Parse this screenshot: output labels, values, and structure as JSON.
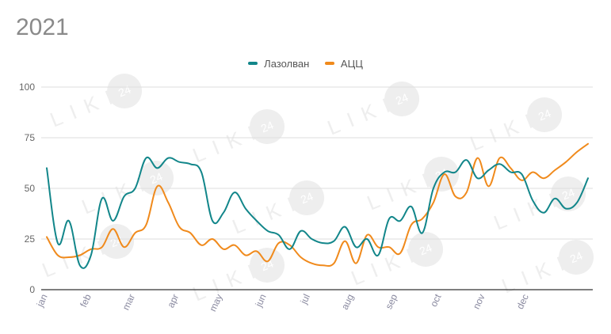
{
  "header": {
    "title": "2021"
  },
  "colors": {
    "series_0": "#12868a",
    "series_1": "#f08a1c",
    "grid": "#dddddd",
    "axis": "#333333"
  },
  "watermark": {
    "text": "LIKI",
    "badge": "24"
  },
  "chart_data": {
    "type": "line",
    "title": "",
    "xlabel": "",
    "ylabel": "",
    "ylim": [
      0,
      100
    ],
    "yticks": [
      0,
      25,
      50,
      75,
      100
    ],
    "grid": true,
    "legend_position": "top",
    "x_labels": [
      "jan",
      "feb",
      "mar",
      "apr",
      "may",
      "jun",
      "jul",
      "aug",
      "sep",
      "oct",
      "nov",
      "dec"
    ],
    "series": [
      {
        "name": "Лазолван",
        "values": [
          60,
          23,
          34,
          12,
          17,
          45,
          34,
          46,
          50,
          65,
          60,
          65,
          63,
          62,
          58,
          34,
          38,
          48,
          40,
          34,
          29,
          27,
          20,
          29,
          25,
          23,
          24,
          31,
          21,
          25,
          17,
          35,
          34,
          41,
          28,
          50,
          58,
          58,
          64,
          55,
          59,
          62,
          58,
          57,
          44,
          38,
          45,
          40,
          43,
          55
        ]
      },
      {
        "name": "АЦЦ",
        "values": [
          26,
          17,
          16,
          17,
          20,
          21,
          30,
          21,
          28,
          32,
          51,
          43,
          31,
          28,
          22,
          25,
          20,
          22,
          17,
          19,
          14,
          23,
          22,
          16,
          13,
          12,
          13,
          24,
          13,
          27,
          21,
          21,
          18,
          32,
          35,
          43,
          57,
          46,
          48,
          65,
          51,
          65,
          60,
          54,
          58,
          55,
          59,
          63,
          68,
          72
        ]
      }
    ]
  }
}
